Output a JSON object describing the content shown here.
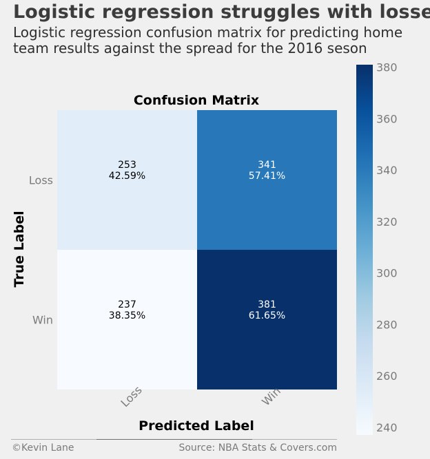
{
  "headline": "Logistic regression struggles with losses",
  "subtitle": "Logistic regression confusion matrix for predicting home team results against the spread for the 2016 seson",
  "footer": {
    "credit": "©Kevin Lane",
    "source": "Source: NBA Stats & Covers.com"
  },
  "chart_data": {
    "type": "heatmap",
    "title": "Confusion Matrix",
    "xlabel": "Predicted Label",
    "ylabel": "True Label",
    "x_categories": [
      "Loss",
      "Win"
    ],
    "y_categories": [
      "Loss",
      "Win"
    ],
    "cells": [
      [
        {
          "count": 253,
          "percent": "42.59%"
        },
        {
          "count": 341,
          "percent": "57.41%"
        }
      ],
      [
        {
          "count": 237,
          "percent": "38.35%"
        },
        {
          "count": 381,
          "percent": "61.65%"
        }
      ]
    ],
    "colorbar": {
      "range": [
        237,
        381
      ],
      "ticks": [
        240,
        260,
        280,
        300,
        320,
        340,
        360,
        380
      ],
      "colormap": "Blues"
    },
    "colors": {
      "text_dark": "#000000",
      "text_light": "#ffffff",
      "tick": "#7a7a7a"
    }
  }
}
